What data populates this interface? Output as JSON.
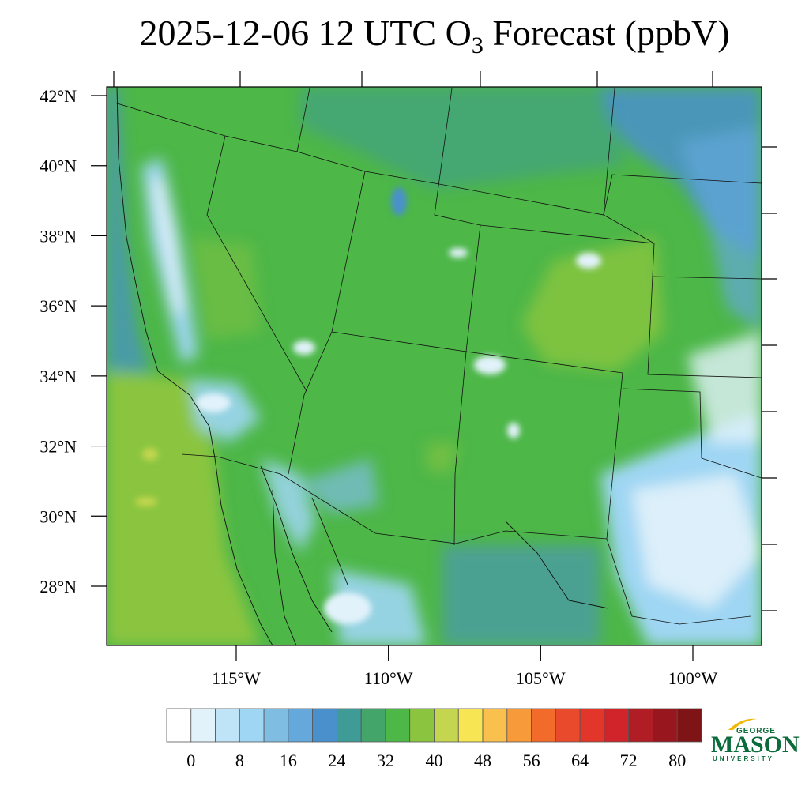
{
  "title": {
    "prefix": "2025-12-06 12 UTC O",
    "subscript": "3",
    "suffix": " Forecast (ppbV)"
  },
  "map": {
    "region": "Western United States and northern Mexico",
    "lat_labels": [
      "42°N",
      "40°N",
      "38°N",
      "36°N",
      "34°N",
      "32°N",
      "30°N",
      "28°N"
    ],
    "lat_values": [
      42,
      40,
      38,
      36,
      34,
      32,
      30,
      28
    ],
    "lon_labels": [
      "115°W",
      "110°W",
      "105°W",
      "100°W"
    ],
    "lon_values": [
      -115,
      -110,
      -105,
      -100
    ],
    "dominant_field_range_ppbv": [
      28,
      40
    ],
    "low_regions_ppbv": [
      8,
      24
    ],
    "colors": {
      "ocean_elevated": "#8bc53f",
      "land_main": "#4db748",
      "teal": "#3c9d86",
      "blue": "#4a90cd",
      "light_blue": "#9fd3f0",
      "pale": "#e0f2fb"
    }
  },
  "colorbar": {
    "tick_labels": [
      "0",
      "8",
      "16",
      "24",
      "32",
      "40",
      "48",
      "56",
      "64",
      "72",
      "80"
    ],
    "colors": [
      "#ffffff",
      "#e2f2fb",
      "#bfe4f7",
      "#9fd6f3",
      "#7fbde3",
      "#64a8dc",
      "#4a90cd",
      "#3f9b96",
      "#44a56b",
      "#4db748",
      "#8bc53f",
      "#c4d64f",
      "#f7e553",
      "#f9c04d",
      "#f79a3a",
      "#f26b2b",
      "#ea4a2c",
      "#e3362b",
      "#d1232a",
      "#b11d25",
      "#98161d",
      "#7f1416"
    ]
  },
  "logo": {
    "line1": "GEORGE",
    "line2": "MASON",
    "line3": "UNIVERSITY"
  }
}
